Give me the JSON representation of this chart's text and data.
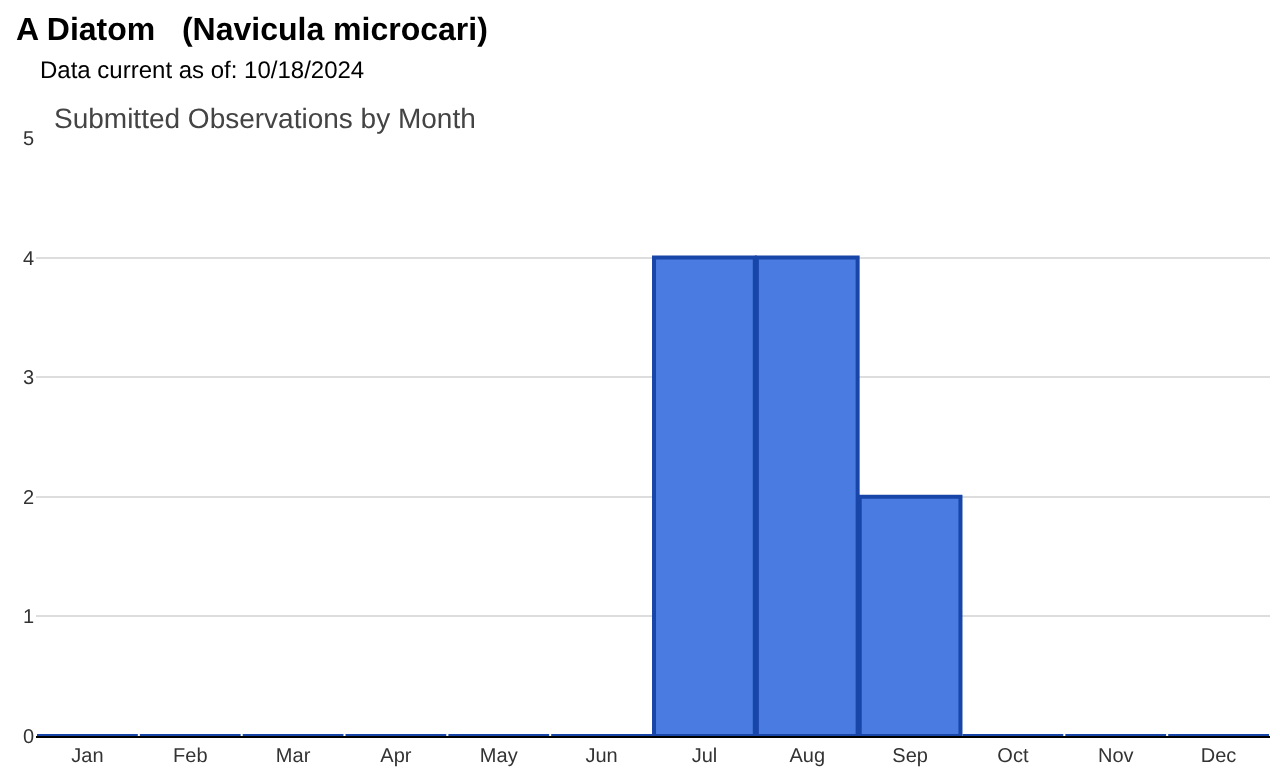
{
  "chart_data": {
    "type": "bar",
    "title": "A Diatom   (Navicula microcari)",
    "subtitle": "Data current as of: 10/18/2024",
    "annotations": [
      "Submitted Observations by Month"
    ],
    "categories": [
      "Jan",
      "Feb",
      "Mar",
      "Apr",
      "May",
      "Jun",
      "Jul",
      "Aug",
      "Sep",
      "Oct",
      "Nov",
      "Dec"
    ],
    "values": [
      0,
      0,
      0,
      0,
      0,
      0,
      4,
      4,
      2,
      0,
      0,
      0
    ],
    "color": "#4a7be0",
    "ylim": [
      0,
      5
    ],
    "yticks": [
      0,
      1,
      2,
      3,
      4,
      5
    ],
    "grid": "y",
    "legend": false
  }
}
